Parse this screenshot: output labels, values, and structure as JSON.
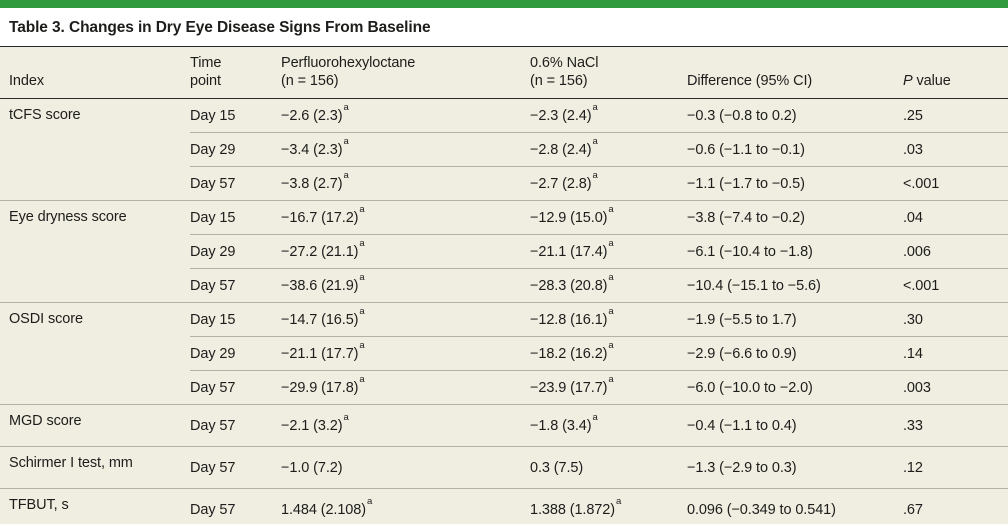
{
  "page": {
    "title": "Table 3. Changes in Dry Eye Disease Signs From Baseline"
  },
  "colors": {
    "accent_green": "#2f9a3e",
    "table_background": "#f0ede1",
    "rule_dark": "#2a2a28",
    "rule_light": "#b5b1a4",
    "text": "#1d1d1b"
  },
  "table": {
    "header": {
      "index": "Index",
      "time_point_line1": "Time",
      "time_point_line2": "point",
      "pfhx_line1": "Perfluorohexyloctane",
      "pfhx_line2": "(n = 156)",
      "nacl_line1": "0.6% NaCl",
      "nacl_line2": "(n = 156)",
      "difference": "Difference (95% CI)",
      "p_italic": "P",
      "p_rest": " value"
    },
    "sections": [
      {
        "index": "tCFS score",
        "rows": [
          {
            "time": "Day 15",
            "pfhx": "−2.6 (2.3)",
            "pfhx_sup": "a",
            "nacl": "−2.3 (2.4)",
            "nacl_sup": "a",
            "diff": "−0.3 (−0.8 to 0.2)",
            "p": ".25"
          },
          {
            "time": "Day 29",
            "pfhx": "−3.4 (2.3)",
            "pfhx_sup": "a",
            "nacl": "−2.8 (2.4)",
            "nacl_sup": "a",
            "diff": "−0.6 (−1.1 to −0.1)",
            "p": ".03"
          },
          {
            "time": "Day 57",
            "pfhx": "−3.8 (2.7)",
            "pfhx_sup": "a",
            "nacl": "−2.7 (2.8)",
            "nacl_sup": "a",
            "diff": "−1.1 (−1.7 to −0.5)",
            "p": "<.001"
          }
        ]
      },
      {
        "index": "Eye dryness score",
        "rows": [
          {
            "time": "Day 15",
            "pfhx": "−16.7 (17.2)",
            "pfhx_sup": "a",
            "nacl": "−12.9 (15.0)",
            "nacl_sup": "a",
            "diff": "−3.8 (−7.4 to −0.2)",
            "p": ".04"
          },
          {
            "time": "Day 29",
            "pfhx": "−27.2 (21.1)",
            "pfhx_sup": "a",
            "nacl": "−21.1 (17.4)",
            "nacl_sup": "a",
            "diff": "−6.1 (−10.4 to −1.8)",
            "p": ".006"
          },
          {
            "time": "Day 57",
            "pfhx": "−38.6 (21.9)",
            "pfhx_sup": "a",
            "nacl": "−28.3 (20.8)",
            "nacl_sup": "a",
            "diff": "−10.4 (−15.1 to −5.6)",
            "p": "<.001"
          }
        ]
      },
      {
        "index": "OSDI score",
        "rows": [
          {
            "time": "Day 15",
            "pfhx": "−14.7 (16.5)",
            "pfhx_sup": "a",
            "nacl": "−12.8 (16.1)",
            "nacl_sup": "a",
            "diff": "−1.9 (−5.5 to 1.7)",
            "p": ".30"
          },
          {
            "time": "Day 29",
            "pfhx": "−21.1 (17.7)",
            "pfhx_sup": "a",
            "nacl": "−18.2 (16.2)",
            "nacl_sup": "a",
            "diff": "−2.9 (−6.6 to 0.9)",
            "p": ".14"
          },
          {
            "time": "Day 57",
            "pfhx": "−29.9 (17.8)",
            "pfhx_sup": "a",
            "nacl": "−23.9 (17.7)",
            "nacl_sup": "a",
            "diff": "−6.0 (−10.0 to −2.0)",
            "p": ".003"
          }
        ]
      },
      {
        "index": "MGD score",
        "rows": [
          {
            "time": "Day 57",
            "pfhx": "−2.1 (3.2)",
            "pfhx_sup": "a",
            "nacl": "−1.8 (3.4)",
            "nacl_sup": "a",
            "diff": "−0.4 (−1.1 to 0.4)",
            "p": ".33"
          }
        ]
      },
      {
        "index": "Schirmer I test, mm",
        "rows": [
          {
            "time": "Day 57",
            "pfhx": "−1.0 (7.2)",
            "pfhx_sup": "",
            "nacl": "0.3 (7.5)",
            "nacl_sup": "",
            "diff": "−1.3 (−2.9 to 0.3)",
            "p": ".12"
          }
        ]
      },
      {
        "index": "TFBUT, s",
        "rows": [
          {
            "time": "Day 57",
            "pfhx": "1.484 (2.108)",
            "pfhx_sup": "a",
            "nacl": "1.388 (1.872)",
            "nacl_sup": "a",
            "diff": "0.096 (−0.349 to 0.541)",
            "p": ".67"
          }
        ]
      }
    ]
  }
}
